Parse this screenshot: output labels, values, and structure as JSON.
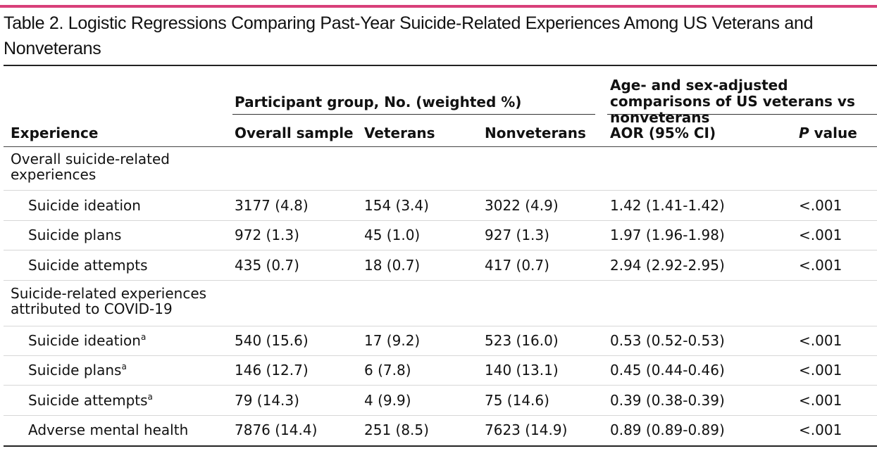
{
  "title": "Table 2. Logistic Regressions Comparing Past-Year Suicide-Related Experiences Among US Veterans and Nonveterans",
  "colors": {
    "accent_bar": "#d8407a",
    "text": "#111111",
    "row_divider": "#d7d7d7"
  },
  "header": {
    "group_participants": "Participant group, No. (weighted %)",
    "group_comparison": "Age- and sex-adjusted comparisons of US veterans vs nonveterans",
    "columns": {
      "experience": "Experience",
      "overall": "Overall sample",
      "veterans": "Veterans",
      "nonveterans": "Nonveterans",
      "aor": "AOR (95% CI)",
      "p_italic": "P",
      "p_rest": " value"
    }
  },
  "sections": [
    {
      "label": "Overall suicide-related experiences",
      "rows": [
        {
          "experience": "Suicide ideation",
          "footnote": "",
          "overall": "3177 (4.8)",
          "veterans": "154 (3.4)",
          "nonveterans": "3022 (4.9)",
          "aor": "1.42 (1.41-1.42)",
          "p": "<.001"
        },
        {
          "experience": "Suicide plans",
          "footnote": "",
          "overall": "972 (1.3)",
          "veterans": "45 (1.0)",
          "nonveterans": "927 (1.3)",
          "aor": "1.97 (1.96-1.98)",
          "p": "<.001"
        },
        {
          "experience": "Suicide attempts",
          "footnote": "",
          "overall": "435 (0.7)",
          "veterans": "18 (0.7)",
          "nonveterans": "417 (0.7)",
          "aor": "2.94 (2.92-2.95)",
          "p": "<.001"
        }
      ]
    },
    {
      "label": "Suicide-related experiences attributed to COVID-19",
      "rows": [
        {
          "experience": "Suicide ideation",
          "footnote": "a",
          "overall": "540 (15.6)",
          "veterans": "17 (9.2)",
          "nonveterans": "523 (16.0)",
          "aor": "0.53 (0.52-0.53)",
          "p": "<.001"
        },
        {
          "experience": "Suicide plans",
          "footnote": "a",
          "overall": "146 (12.7)",
          "veterans": "6 (7.8)",
          "nonveterans": "140 (13.1)",
          "aor": "0.45 (0.44-0.46)",
          "p": "<.001"
        },
        {
          "experience": "Suicide attempts",
          "footnote": "a",
          "overall": "79 (14.3)",
          "veterans": "4 (9.9)",
          "nonveterans": "75 (14.6)",
          "aor": "0.39 (0.38-0.39)",
          "p": "<.001"
        },
        {
          "experience": "Adverse mental health",
          "footnote": "",
          "overall": "7876 (14.4)",
          "veterans": "251 (8.5)",
          "nonveterans": "7623 (14.9)",
          "aor": "0.89 (0.89-0.89)",
          "p": "<.001"
        }
      ]
    }
  ]
}
